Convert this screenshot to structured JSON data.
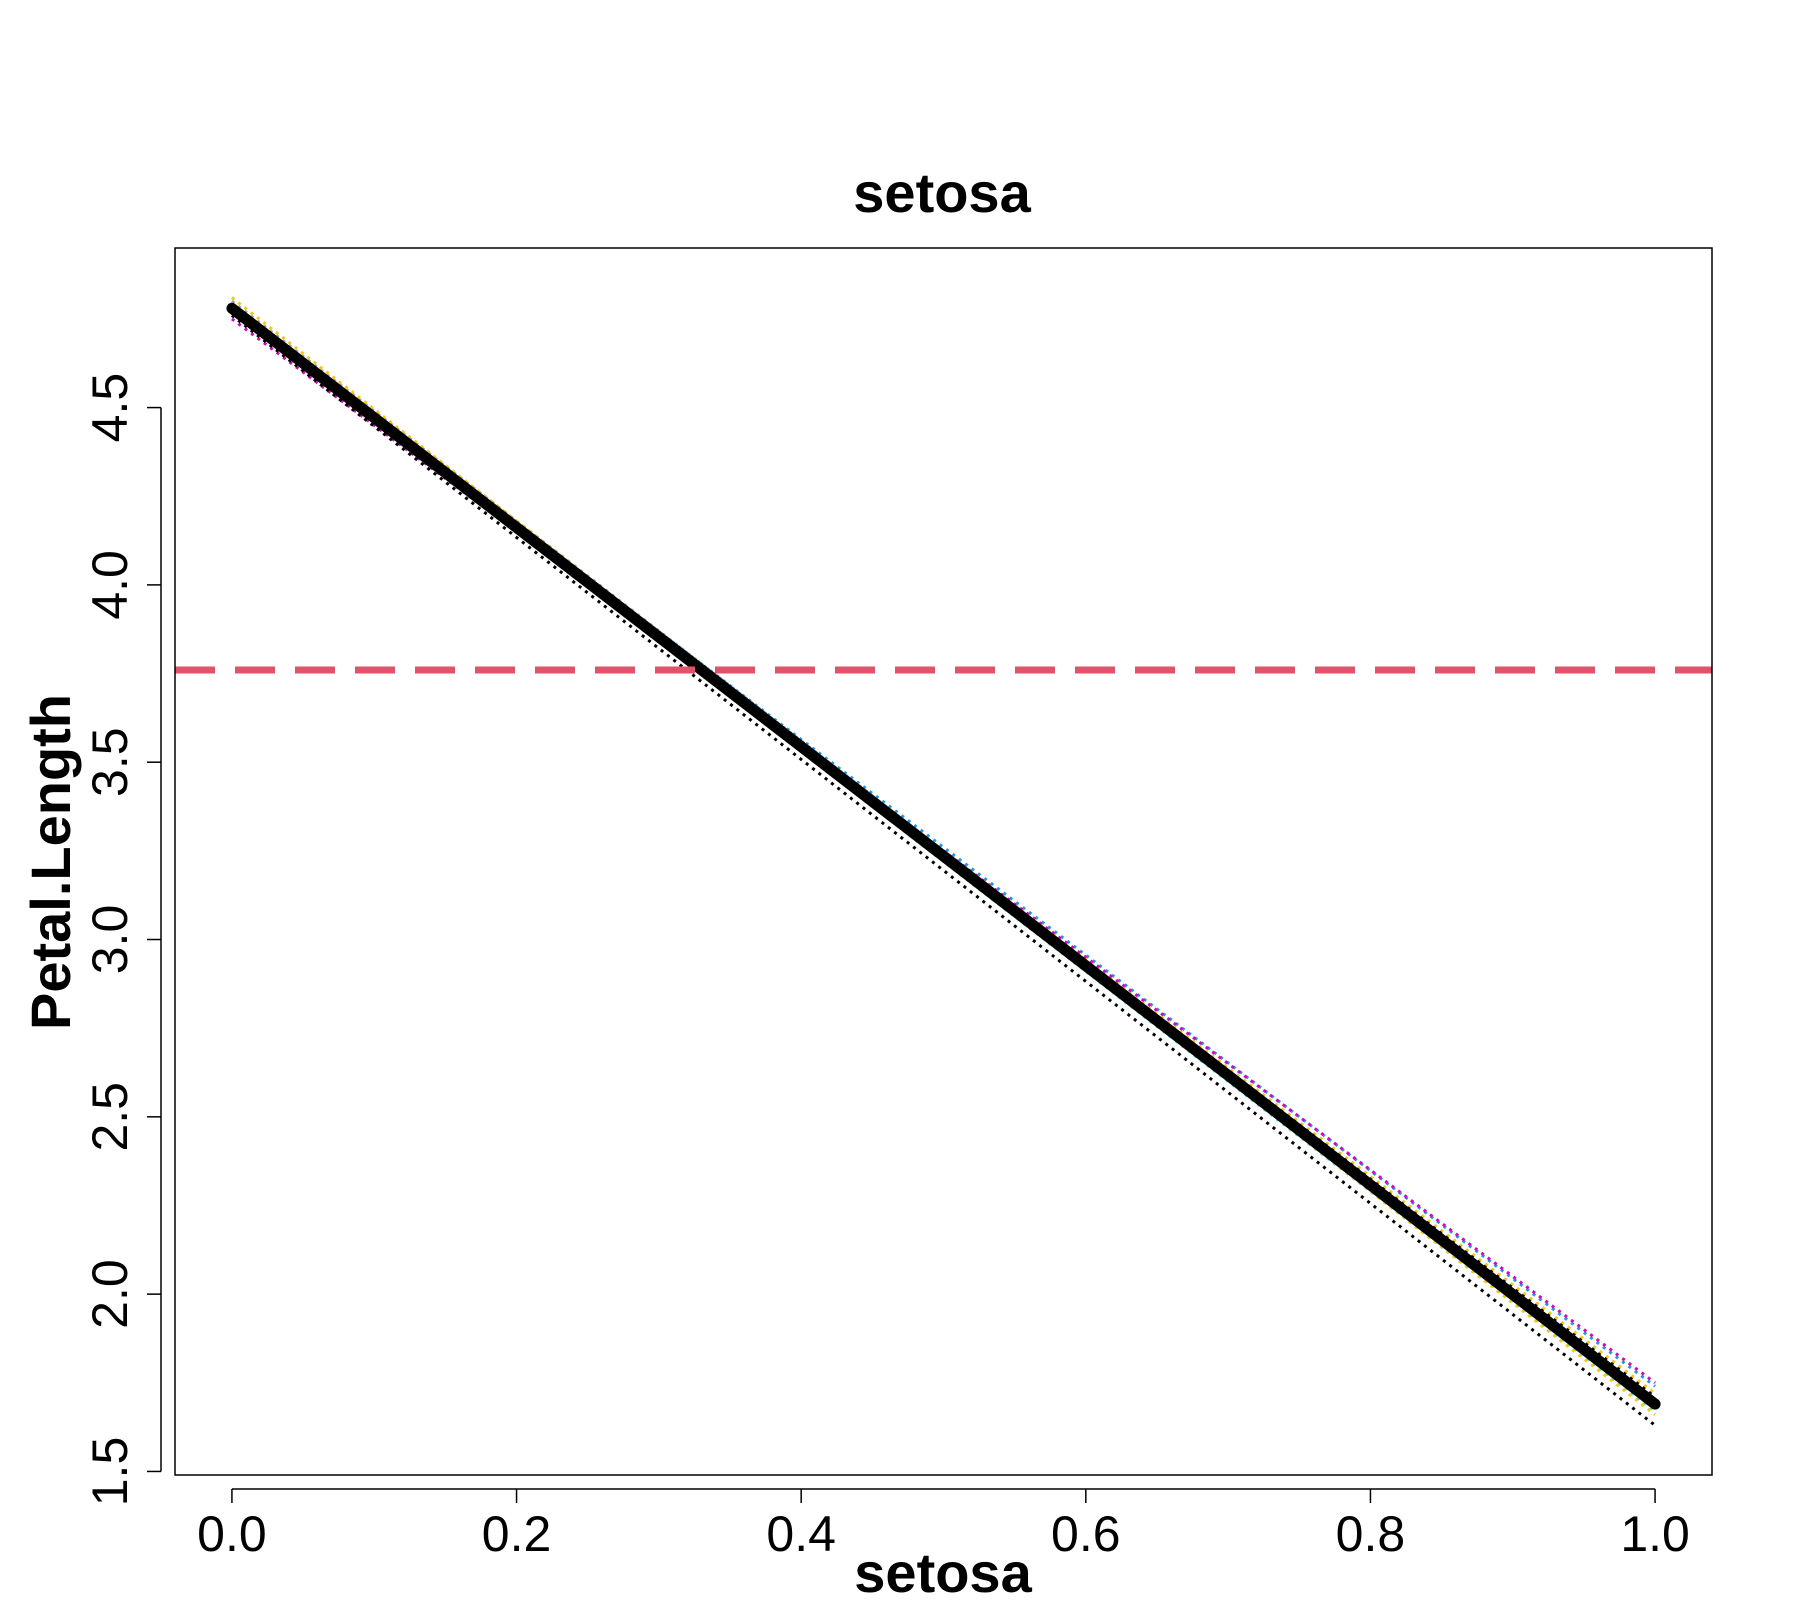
{
  "chart_data": {
    "type": "line",
    "title": "setosa",
    "xlabel": "setosa",
    "ylabel": "Petal.Length",
    "xlim": [
      -0.04,
      1.04
    ],
    "ylim": [
      1.49,
      4.95
    ],
    "x_ticks": [
      "0.0",
      "0.2",
      "0.4",
      "0.6",
      "0.8",
      "1.0"
    ],
    "y_ticks": [
      "1.5",
      "2.0",
      "2.5",
      "3.0",
      "3.5",
      "4.0",
      "4.5"
    ],
    "grid": false,
    "legend": "none",
    "series": [
      {
        "x": [
          0,
          1
        ],
        "y": [
          4.78,
          1.72
        ],
        "color": "#f5c710",
        "style": "dotted"
      },
      {
        "x": [
          0,
          1
        ],
        "y": [
          4.77,
          1.67
        ],
        "color": "#28e2e5",
        "style": "dotted"
      },
      {
        "x": [
          0,
          1
        ],
        "y": [
          4.77,
          1.7
        ],
        "color": "#df536b",
        "style": "dotted"
      },
      {
        "x": [
          0,
          1
        ],
        "y": [
          4.78,
          1.74
        ],
        "color": "#2297e6",
        "style": "dotted"
      },
      {
        "x": [
          0,
          1
        ],
        "y": [
          4.75,
          1.75
        ],
        "color": "#cd0bbc",
        "style": "dotted"
      },
      {
        "x": [
          0,
          1
        ],
        "y": [
          4.79,
          1.68
        ],
        "color": "#61d04f",
        "style": "dotted"
      },
      {
        "x": [
          0,
          1
        ],
        "y": [
          4.8,
          1.7
        ],
        "color": "#9e9e9e",
        "style": "dotted"
      },
      {
        "x": [
          0,
          1
        ],
        "y": [
          4.76,
          1.63
        ],
        "color": "#000000",
        "style": "dotted"
      },
      {
        "x": [
          0,
          1
        ],
        "y": [
          4.81,
          1.66
        ],
        "color": "#f5c710",
        "style": "dotted"
      },
      {
        "x": [
          0,
          1
        ],
        "y": [
          4.78,
          1.71
        ],
        "color": "#000000",
        "style": "dotted"
      },
      {
        "x": [
          0,
          1
        ],
        "y": [
          4.78,
          1.69
        ],
        "color": "#000000",
        "style": "solid-thick"
      }
    ],
    "reference_lines": [
      {
        "orientation": "horizontal",
        "y": 3.76,
        "color": "#df536b",
        "style": "dashed"
      }
    ]
  }
}
